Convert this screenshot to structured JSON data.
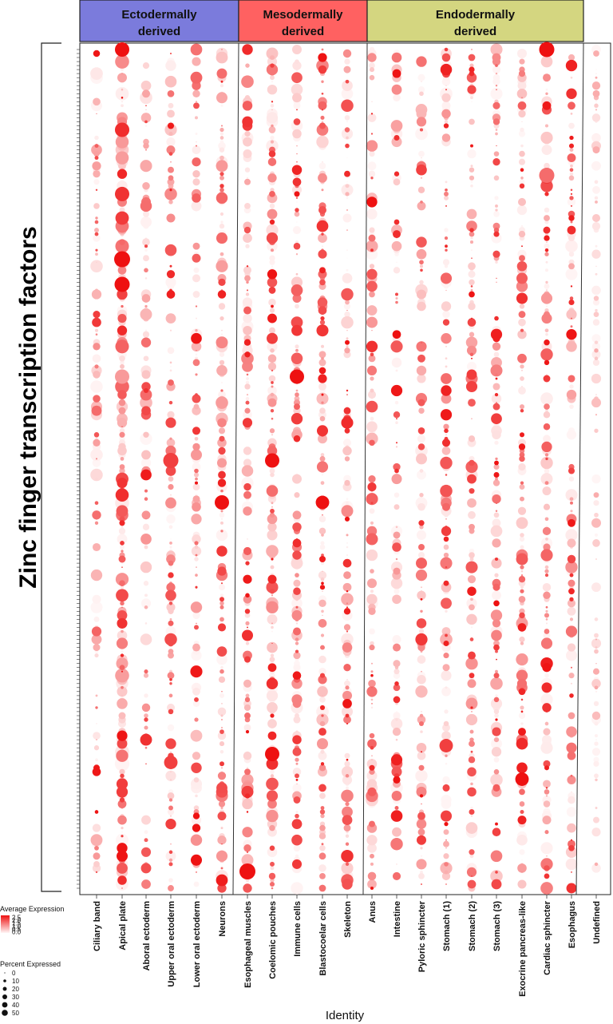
{
  "colors": {
    "ecto_box": "#7b7bdc",
    "meso_box": "#ff6161",
    "endo_box": "#d4d680",
    "expr_low": "#fff5f5",
    "expr_high": "#ee1111"
  },
  "groups": [
    {
      "line1": "Ectodermally",
      "line2": "derived"
    },
    {
      "line1": "Mesodermally",
      "line2": "derived"
    },
    {
      "line1": "Endodermally",
      "line2": "derived"
    }
  ],
  "y_axis_title": "Zinc finger transcription factors",
  "legend": {
    "avg_title": "Average Expression",
    "avg_ticks": [
      "2.5",
      "2.0",
      "1.5",
      "1.0",
      "0.5",
      "0.0"
    ],
    "pct_title": "Percent Expressed",
    "pct_ticks": [
      "0",
      "10",
      "20",
      "30",
      "40",
      "50"
    ]
  },
  "chart_data": {
    "type": "dot plot",
    "x_title": "Identity",
    "y_title": "Zinc finger transcription factors",
    "categories": [
      "Ciliary band",
      "Apical plate",
      "Aboral ectoderm",
      "Upper oral ectoderm",
      "Lower oral ectoderm",
      "Neurons",
      "Esophageal muscles",
      "Coelomic pouches",
      "Immune cells",
      "Blastocoelar cells",
      "Skeleton",
      "Anus",
      "Intestine",
      "Pyloric sphincter",
      "Stomach (1)",
      "Stomach (2)",
      "Stomach (3)",
      "Exocrine pancreas-like",
      "Cardiac sphincter",
      "Esophagus",
      "Undefined"
    ],
    "category_groups": {
      "Ectodermally derived": [
        "Ciliary band",
        "Apical plate",
        "Aboral ectoderm",
        "Upper oral ectoderm",
        "Lower oral ectoderm",
        "Neurons"
      ],
      "Mesodermally derived": [
        "Esophageal muscles",
        "Coelomic pouches",
        "Immune cells",
        "Blastocoelar cells",
        "Skeleton"
      ],
      "Endodermally derived": [
        "Anus",
        "Intestine",
        "Pyloric sphincter",
        "Stomach (1)",
        "Stomach (2)",
        "Stomach (3)",
        "Exocrine pancreas-like",
        "Cardiac sphincter",
        "Esophagus"
      ]
    },
    "rows_approx": 210,
    "avg_expression_range": [
      0.0,
      2.5
    ],
    "percent_expressed_range": [
      0,
      50
    ],
    "notable_points": [
      {
        "category": "Apical plate",
        "row_fraction": 0.0,
        "pct": 40,
        "avg": 2.5
      },
      {
        "category": "Apical plate",
        "row_fraction": 0.25,
        "pct": 50,
        "avg": 2.5
      },
      {
        "category": "Apical plate",
        "row_fraction": 0.28,
        "pct": 45,
        "avg": 2.5
      },
      {
        "category": "Apical plate",
        "row_fraction": 0.39,
        "pct": 40,
        "avg": 1.0
      },
      {
        "category": "Upper oral ectoderm",
        "row_fraction": 0.49,
        "pct": 45,
        "avg": 2.0
      },
      {
        "category": "Upper oral ectoderm",
        "row_fraction": 0.85,
        "pct": 35,
        "avg": 2.0
      },
      {
        "category": "Neurons",
        "row_fraction": 0.54,
        "pct": 40,
        "avg": 2.5
      },
      {
        "category": "Esophageal muscles",
        "row_fraction": 0.98,
        "pct": 50,
        "avg": 2.5
      },
      {
        "category": "Coelomic pouches",
        "row_fraction": 0.49,
        "pct": 40,
        "avg": 2.5
      },
      {
        "category": "Coelomic pouches",
        "row_fraction": 0.84,
        "pct": 40,
        "avg": 2.5
      },
      {
        "category": "Immune cells",
        "row_fraction": 0.39,
        "pct": 40,
        "avg": 2.5
      },
      {
        "category": "Blastocoelar cells",
        "row_fraction": 0.54,
        "pct": 35,
        "avg": 2.5
      },
      {
        "category": "Cardiac sphincter",
        "row_fraction": 0.0,
        "pct": 45,
        "avg": 2.5
      },
      {
        "category": "Cardiac sphincter",
        "row_fraction": 0.15,
        "pct": 45,
        "avg": 1.5
      },
      {
        "category": "Exocrine pancreas-like",
        "row_fraction": 0.87,
        "pct": 35,
        "avg": 2.5
      },
      {
        "category": "Stomach (1)",
        "row_fraction": 0.83,
        "pct": 35,
        "avg": 2.0
      }
    ]
  }
}
